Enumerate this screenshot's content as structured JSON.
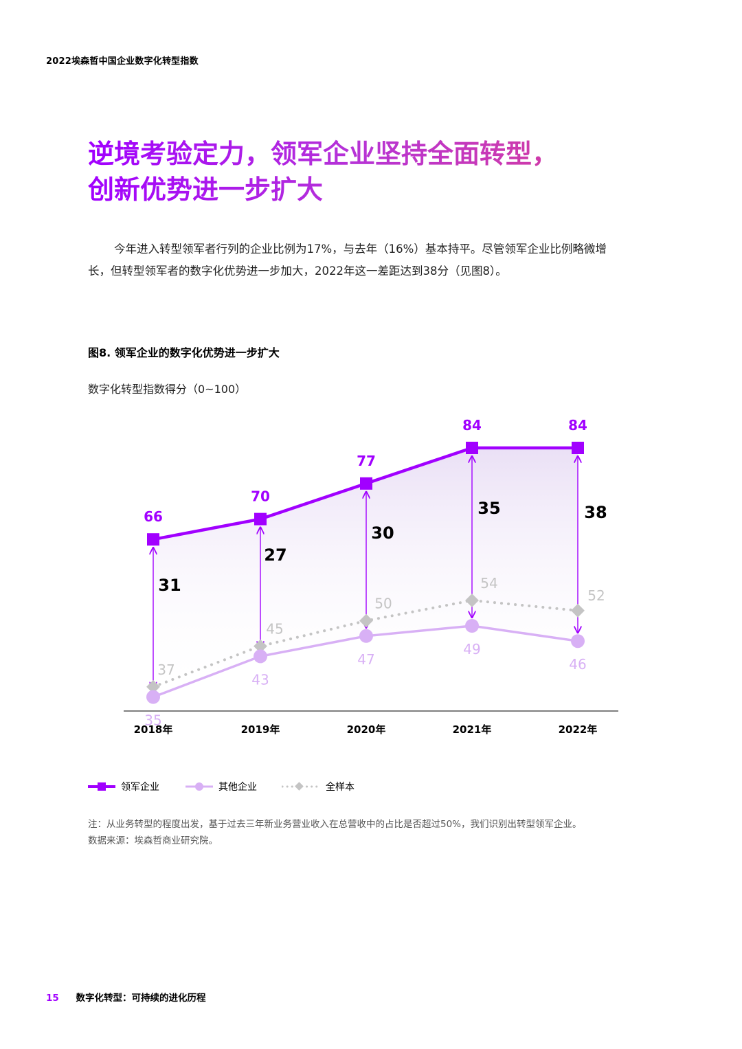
{
  "header": {
    "report_title": "2022埃森哲中国企业数字化转型指数"
  },
  "headline": {
    "line1": "逆境考验定力，领军企业坚持全面转型，",
    "line2": "创新优势进一步扩大"
  },
  "body": {
    "paragraph": "今年进入转型领军者行列的企业比例为17%，与去年（16%）基本持平。尽管领军企业比例略微增长，但转型领军者的数字化优势进一步加大，2022年这一差距达到38分（见图8）。"
  },
  "figure": {
    "title": "图8. 领军企业的数字化优势进一步扩大",
    "subtitle": "数字化转型指数得分（0~100）"
  },
  "chart_data": {
    "type": "line",
    "title": "图8. 领军企业的数字化优势进一步扩大",
    "ylabel": "数字化转型指数得分（0~100）",
    "xlabel": "",
    "categories": [
      "2018年",
      "2019年",
      "2020年",
      "2021年",
      "2022年"
    ],
    "series": [
      {
        "name": "领军企业",
        "values": [
          66,
          70,
          77,
          84,
          84
        ],
        "color": "#a100ff",
        "marker": "square"
      },
      {
        "name": "其他企业",
        "values": [
          35,
          43,
          47,
          49,
          46
        ],
        "color": "#d8b0f5",
        "marker": "circle"
      },
      {
        "name": "全样本",
        "values": [
          37,
          45,
          50,
          54,
          52
        ],
        "color": "#c4c4c4",
        "marker": "diamond"
      }
    ],
    "gaps": [
      31,
      27,
      30,
      35,
      38
    ],
    "ylim": [
      30,
      90
    ],
    "grid": false,
    "legend": "bottom-left"
  },
  "legend": {
    "items": [
      "领军企业",
      "其他企业",
      "全样本"
    ]
  },
  "note": {
    "line1": "注：从业务转型的程度出发，基于过去三年新业务营业收入在总营收中的占比是否超过50%，我们识别出转型领军企业。",
    "line2": "数据来源：埃森哲商业研究院。"
  },
  "footer": {
    "page_number": "15",
    "section_title": "数字化转型：可持续的进化历程"
  }
}
